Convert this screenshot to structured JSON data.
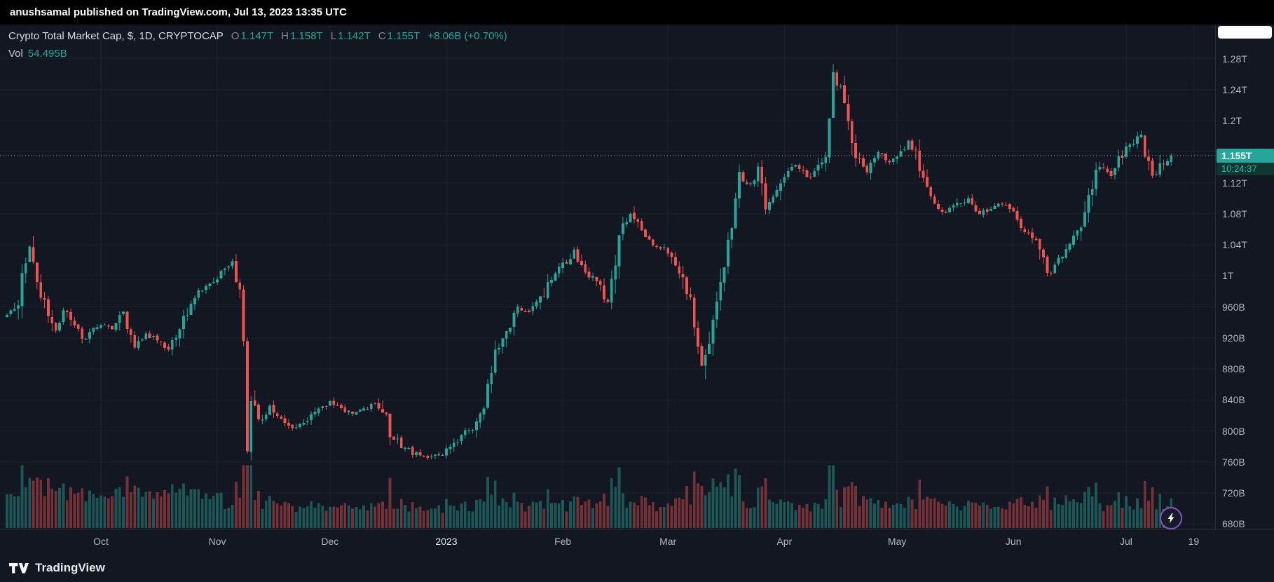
{
  "publish_bar": {
    "text": "anushsamal published on TradingView.com, Jul 13, 2023 13:35 UTC"
  },
  "legend": {
    "title": "Crypto Total Market Cap, $, 1D, CRYPTOCAP",
    "ohlc": [
      {
        "label": "O",
        "value": "1.147T"
      },
      {
        "label": "H",
        "value": "1.158T"
      },
      {
        "label": "L",
        "value": "1.142T"
      },
      {
        "label": "C",
        "value": "1.155T"
      }
    ],
    "change": "+8.06B (+0.70%)",
    "vol_label": "Vol",
    "vol_value": "54.495B"
  },
  "price_axis": {
    "labels": [
      {
        "text": "1.28T",
        "price": 1280
      },
      {
        "text": "1.24T",
        "price": 1240
      },
      {
        "text": "1.2T",
        "price": 1200
      },
      {
        "text": "1.12T",
        "price": 1120
      },
      {
        "text": "1.08T",
        "price": 1080
      },
      {
        "text": "1.04T",
        "price": 1040
      },
      {
        "text": "1T",
        "price": 1000
      },
      {
        "text": "960B",
        "price": 960
      },
      {
        "text": "920B",
        "price": 920
      },
      {
        "text": "880B",
        "price": 880
      },
      {
        "text": "840B",
        "price": 840
      },
      {
        "text": "800B",
        "price": 800
      },
      {
        "text": "760B",
        "price": 760
      },
      {
        "text": "720B",
        "price": 720
      },
      {
        "text": "680B",
        "price": 680
      }
    ],
    "badge": {
      "price_text": "1.155T",
      "countdown": "10:24:37",
      "price": 1155
    }
  },
  "time_axis": {
    "labels": [
      {
        "text": "Oct",
        "day": 25
      },
      {
        "text": "Nov",
        "day": 56
      },
      {
        "text": "Dec",
        "day": 86
      },
      {
        "text": "2023",
        "day": 117,
        "emphasis": true
      },
      {
        "text": "Feb",
        "day": 148
      },
      {
        "text": "Mar",
        "day": 176
      },
      {
        "text": "Apr",
        "day": 207
      },
      {
        "text": "May",
        "day": 237
      },
      {
        "text": "Jun",
        "day": 268
      },
      {
        "text": "Jul",
        "day": 298
      },
      {
        "text": "19",
        "day": 316
      }
    ]
  },
  "footer": {
    "brand": "TradingView"
  },
  "colors": {
    "up": "#26a69a",
    "down": "#ef5350",
    "background": "#131722",
    "grid": "#1c2130",
    "axis_text": "#b2b5be",
    "badge_bg": "#26a69a",
    "current_price_line": "#b2b5be"
  },
  "chart_data": {
    "type": "candlestick",
    "title": "Crypto Total Market Cap, $, 1D, CRYPTOCAP",
    "units": "billions USD",
    "visible_price_range_billions": [
      673,
      1324
    ],
    "current_price_billions": 1155,
    "current_volume_billions": 54.495,
    "days": 311,
    "last_candle_billions": {
      "open": 1147,
      "high": 1158,
      "low": 1142,
      "close": 1155,
      "volume": 54.495
    },
    "gridline_prices": [
      1280,
      1240,
      1200,
      1160,
      1120,
      1080,
      1040,
      1000,
      960,
      920,
      880,
      840,
      800,
      760,
      720,
      680
    ],
    "close_keyframes_day_price": [
      [
        0,
        948
      ],
      [
        3,
        968
      ],
      [
        6,
        1038
      ],
      [
        8,
        985
      ],
      [
        11,
        952
      ],
      [
        13,
        930
      ],
      [
        15,
        958
      ],
      [
        18,
        936
      ],
      [
        21,
        918
      ],
      [
        25,
        938
      ],
      [
        28,
        930
      ],
      [
        31,
        956
      ],
      [
        34,
        912
      ],
      [
        37,
        924
      ],
      [
        40,
        918
      ],
      [
        43,
        906
      ],
      [
        46,
        928
      ],
      [
        50,
        976
      ],
      [
        53,
        986
      ],
      [
        57,
        1002
      ],
      [
        60,
        1018
      ],
      [
        62,
        988
      ],
      [
        63,
        905
      ],
      [
        64,
        785
      ],
      [
        65,
        842
      ],
      [
        67,
        812
      ],
      [
        70,
        832
      ],
      [
        73,
        818
      ],
      [
        76,
        802
      ],
      [
        80,
        812
      ],
      [
        83,
        828
      ],
      [
        86,
        838
      ],
      [
        89,
        830
      ],
      [
        92,
        822
      ],
      [
        95,
        828
      ],
      [
        98,
        836
      ],
      [
        100,
        828
      ],
      [
        102,
        796
      ],
      [
        105,
        780
      ],
      [
        108,
        772
      ],
      [
        111,
        765
      ],
      [
        114,
        768
      ],
      [
        117,
        774
      ],
      [
        120,
        788
      ],
      [
        124,
        806
      ],
      [
        127,
        838
      ],
      [
        130,
        898
      ],
      [
        133,
        922
      ],
      [
        136,
        958
      ],
      [
        139,
        952
      ],
      [
        142,
        968
      ],
      [
        145,
        1000
      ],
      [
        148,
        1012
      ],
      [
        151,
        1032
      ],
      [
        154,
        1006
      ],
      [
        157,
        990
      ],
      [
        160,
        968
      ],
      [
        163,
        1055
      ],
      [
        166,
        1082
      ],
      [
        169,
        1058
      ],
      [
        172,
        1042
      ],
      [
        176,
        1032
      ],
      [
        179,
        1006
      ],
      [
        182,
        962
      ],
      [
        185,
        882
      ],
      [
        187,
        918
      ],
      [
        189,
        962
      ],
      [
        191,
        1022
      ],
      [
        193,
        1072
      ],
      [
        195,
        1125
      ],
      [
        198,
        1118
      ],
      [
        200,
        1138
      ],
      [
        202,
        1092
      ],
      [
        205,
        1108
      ],
      [
        207,
        1132
      ],
      [
        210,
        1142
      ],
      [
        213,
        1128
      ],
      [
        216,
        1138
      ],
      [
        218,
        1165
      ],
      [
        220,
        1252
      ],
      [
        222,
        1242
      ],
      [
        224,
        1198
      ],
      [
        226,
        1152
      ],
      [
        229,
        1135
      ],
      [
        232,
        1158
      ],
      [
        235,
        1148
      ],
      [
        237,
        1152
      ],
      [
        240,
        1172
      ],
      [
        242,
        1155
      ],
      [
        244,
        1122
      ],
      [
        247,
        1092
      ],
      [
        250,
        1082
      ],
      [
        253,
        1092
      ],
      [
        256,
        1102
      ],
      [
        259,
        1078
      ],
      [
        262,
        1088
      ],
      [
        265,
        1092
      ],
      [
        268,
        1082
      ],
      [
        271,
        1058
      ],
      [
        274,
        1042
      ],
      [
        277,
        1002
      ],
      [
        280,
        1022
      ],
      [
        283,
        1038
      ],
      [
        286,
        1062
      ],
      [
        289,
        1118
      ],
      [
        291,
        1142
      ],
      [
        294,
        1132
      ],
      [
        296,
        1148
      ],
      [
        298,
        1162
      ],
      [
        300,
        1172
      ],
      [
        302,
        1182
      ],
      [
        304,
        1138
      ],
      [
        306,
        1128
      ],
      [
        308,
        1148
      ],
      [
        310,
        1155
      ]
    ],
    "note": "Daily candles approximated by interpolating these close keyframes; day 0 is the left edge (early Sep 2022), month labels mark month starts."
  }
}
